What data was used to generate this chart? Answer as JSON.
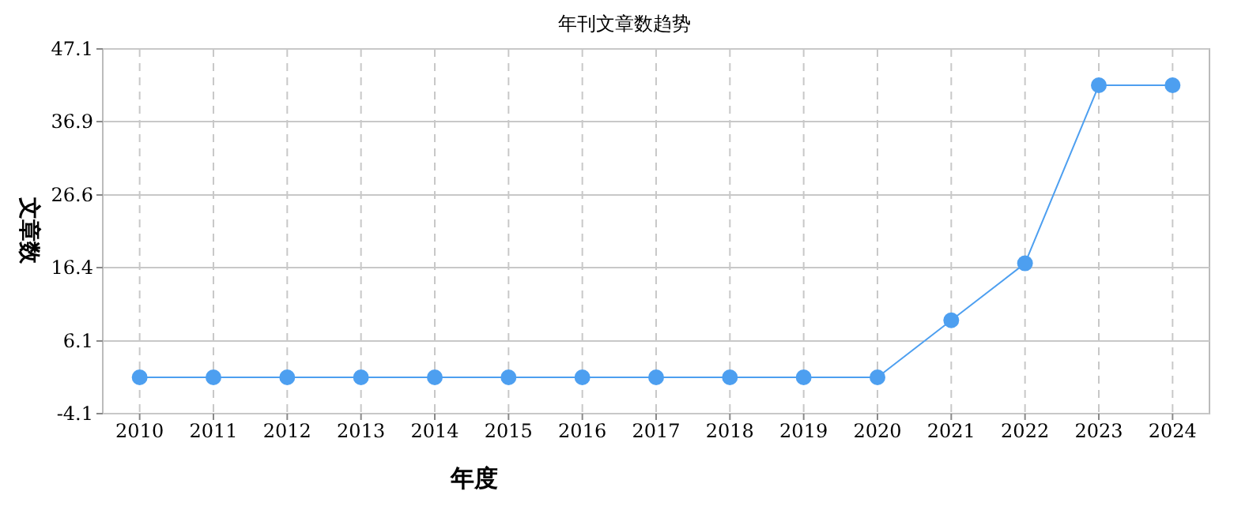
{
  "chart_data": {
    "type": "line",
    "title": "年刊文章数趋势",
    "xlabel": "年度",
    "ylabel": "文章数",
    "categories": [
      "2010",
      "2011",
      "2012",
      "2013",
      "2014",
      "2015",
      "2016",
      "2017",
      "2018",
      "2019",
      "2020",
      "2021",
      "2022",
      "2023",
      "2024"
    ],
    "series": [
      {
        "color": "#4d9ff0",
        "values": [
          1,
          1,
          1,
          1,
          1,
          1,
          1,
          1,
          1,
          1,
          1,
          9,
          17,
          42,
          42
        ]
      }
    ],
    "ylim": [
      -4.1,
      47.1
    ],
    "yticks": [
      -4.1,
      6.1,
      16.4,
      26.6,
      36.9,
      47.1
    ],
    "grid": true,
    "marker": "circle",
    "line_style": "solid"
  }
}
